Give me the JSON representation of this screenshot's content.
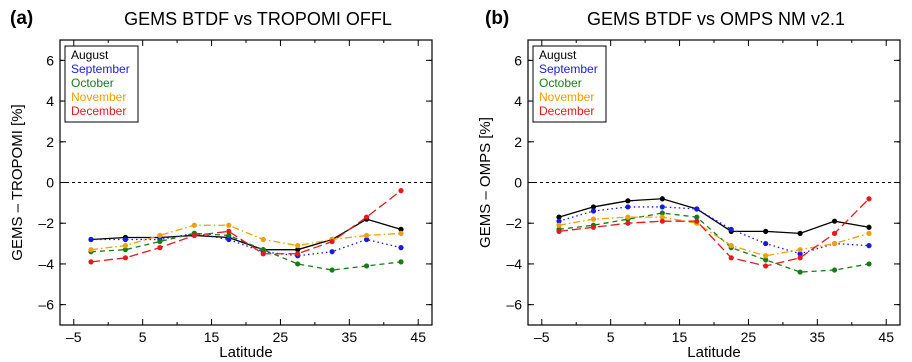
{
  "chart_data": [
    {
      "type": "line",
      "panel_label": "(a)",
      "title": "GEMS BTDF vs TROPOMI OFFL",
      "xlabel": "Latitude",
      "ylabel": "GEMS – TROPOMI [%]",
      "xlim": [
        -7,
        47
      ],
      "ylim": [
        -7,
        7
      ],
      "xticks": [
        -5,
        5,
        15,
        25,
        35,
        45
      ],
      "xtick_labels": [
        "–5",
        "5",
        "15",
        "25",
        "35",
        "45"
      ],
      "yticks": [
        -6,
        -4,
        -2,
        0,
        2,
        4,
        6
      ],
      "ytick_labels": [
        "–6",
        "–4",
        "–2",
        "0",
        "2",
        "4",
        "6"
      ],
      "zero_line": true,
      "grid": false,
      "legend_position": "top-left",
      "x": [
        -2.5,
        2.5,
        7.5,
        12.5,
        17.5,
        22.5,
        27.5,
        32.5,
        37.5,
        42.5
      ],
      "series": [
        {
          "name": "August",
          "color": "#000000",
          "dash": "solid",
          "values": [
            -2.8,
            -2.7,
            -2.7,
            -2.6,
            -2.7,
            -3.3,
            -3.3,
            -2.8,
            -1.8,
            -2.3
          ]
        },
        {
          "name": "September",
          "color": "#1a1adc",
          "dash": "dotted",
          "values": [
            -2.8,
            -2.8,
            -2.8,
            -2.5,
            -2.8,
            -3.4,
            -3.6,
            -3.4,
            -2.8,
            -3.2
          ]
        },
        {
          "name": "October",
          "color": "#1a7a1a",
          "dash": "dashed",
          "values": [
            -3.4,
            -3.3,
            -2.9,
            -2.5,
            -2.6,
            -3.3,
            -4.0,
            -4.3,
            -4.1,
            -3.9
          ]
        },
        {
          "name": "November",
          "color": "#f0a000",
          "dash": "dashdot",
          "values": [
            -3.3,
            -3.1,
            -2.6,
            -2.1,
            -2.1,
            -2.8,
            -3.1,
            -2.8,
            -2.6,
            -2.5
          ]
        },
        {
          "name": "December",
          "color": "#e41a1c",
          "dash": "longdash",
          "values": [
            -3.9,
            -3.7,
            -3.2,
            -2.6,
            -2.4,
            -3.5,
            -3.5,
            -2.9,
            -1.7,
            -0.4
          ]
        }
      ]
    },
    {
      "type": "line",
      "panel_label": "(b)",
      "title": "GEMS BTDF vs OMPS NM v2.1",
      "xlabel": "Latitude",
      "ylabel": "GEMS – OMPS [%]",
      "xlim": [
        -7,
        47
      ],
      "ylim": [
        -7,
        7
      ],
      "xticks": [
        -5,
        5,
        15,
        25,
        35,
        45
      ],
      "xtick_labels": [
        "–5",
        "5",
        "15",
        "25",
        "35",
        "45"
      ],
      "yticks": [
        -6,
        -4,
        -2,
        0,
        2,
        4,
        6
      ],
      "ytick_labels": [
        "–6",
        "–4",
        "–2",
        "0",
        "2",
        "4",
        "6"
      ],
      "zero_line": true,
      "grid": false,
      "legend_position": "top-left",
      "x": [
        -2.5,
        2.5,
        7.5,
        12.5,
        17.5,
        22.5,
        27.5,
        32.5,
        37.5,
        42.5
      ],
      "series": [
        {
          "name": "August",
          "color": "#000000",
          "dash": "solid",
          "values": [
            -1.7,
            -1.2,
            -0.9,
            -0.8,
            -1.3,
            -2.4,
            -2.4,
            -2.5,
            -1.9,
            -2.2
          ]
        },
        {
          "name": "September",
          "color": "#1a1adc",
          "dash": "dotted",
          "values": [
            -1.9,
            -1.4,
            -1.2,
            -1.2,
            -1.3,
            -2.3,
            -3.0,
            -3.5,
            -3.0,
            -3.1
          ]
        },
        {
          "name": "October",
          "color": "#1a7a1a",
          "dash": "dashed",
          "values": [
            -2.3,
            -2.1,
            -1.8,
            -1.5,
            -1.7,
            -3.2,
            -3.8,
            -4.4,
            -4.3,
            -4.0
          ]
        },
        {
          "name": "November",
          "color": "#f0a000",
          "dash": "dashdot",
          "values": [
            -2.1,
            -1.8,
            -1.7,
            -1.7,
            -2.0,
            -3.1,
            -3.6,
            -3.3,
            -3.0,
            -2.5
          ]
        },
        {
          "name": "December",
          "color": "#e41a1c",
          "dash": "longdash",
          "values": [
            -2.4,
            -2.2,
            -2.0,
            -1.9,
            -1.9,
            -3.7,
            -4.1,
            -3.7,
            -2.5,
            -0.8
          ]
        }
      ]
    }
  ]
}
